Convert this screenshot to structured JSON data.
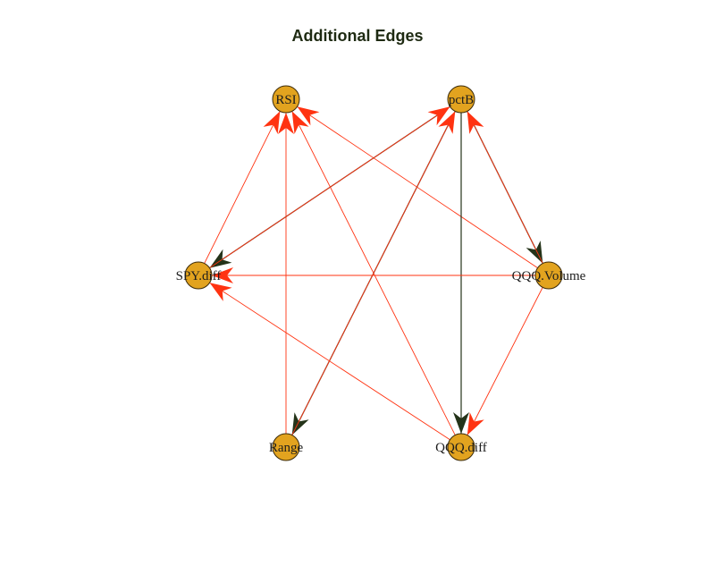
{
  "title": "Additional Edges",
  "colors": {
    "node_fill": "#E2A31F",
    "node_stroke": "#3a2a0a",
    "edge_red": "#FF3311",
    "edge_dark": "#243319",
    "title": "#1e2a12"
  },
  "nodes": [
    {
      "id": "RSI",
      "label": "RSI"
    },
    {
      "id": "pctB",
      "label": "pctB"
    },
    {
      "id": "SPY.diff",
      "label": "SPY.diff"
    },
    {
      "id": "QQQ.Volume",
      "label": "QQQ.Volume"
    },
    {
      "id": "Range",
      "label": "Range"
    },
    {
      "id": "QQQ.diff",
      "label": "QQQ.diff"
    }
  ],
  "edges": [
    {
      "from": "SPY.diff",
      "to": "RSI",
      "color": "red"
    },
    {
      "from": "Range",
      "to": "RSI",
      "color": "red"
    },
    {
      "from": "QQQ.diff",
      "to": "RSI",
      "color": "red"
    },
    {
      "from": "QQQ.Volume",
      "to": "RSI",
      "color": "red"
    },
    {
      "from": "pctB",
      "to": "SPY.diff",
      "color": "dark"
    },
    {
      "from": "pctB",
      "to": "Range",
      "color": "dark"
    },
    {
      "from": "Range",
      "to": "pctB",
      "color": "red"
    },
    {
      "from": "SPY.diff",
      "to": "pctB",
      "color": "red"
    },
    {
      "from": "pctB",
      "to": "QQQ.diff",
      "color": "dark"
    },
    {
      "from": "pctB",
      "to": "QQQ.Volume",
      "color": "dark"
    },
    {
      "from": "QQQ.Volume",
      "to": "pctB",
      "color": "red"
    },
    {
      "from": "QQQ.Volume",
      "to": "SPY.diff",
      "color": "red"
    },
    {
      "from": "QQQ.diff",
      "to": "SPY.diff",
      "color": "red"
    },
    {
      "from": "QQQ.Volume",
      "to": "QQQ.diff",
      "color": "red"
    }
  ]
}
